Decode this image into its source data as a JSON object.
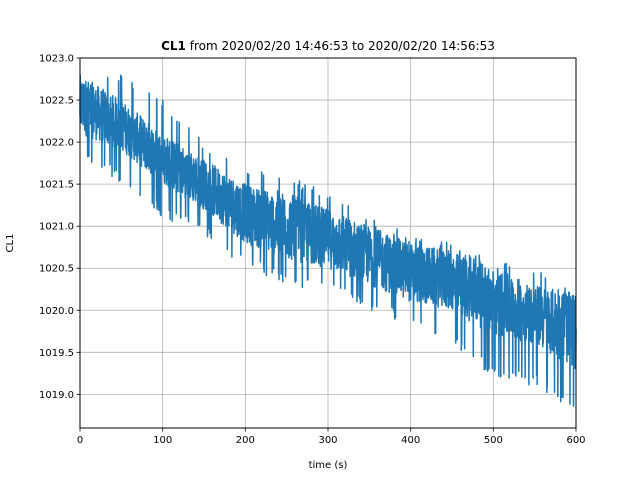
{
  "chart_data": {
    "type": "line",
    "title_bold": "CL1",
    "title_rest": " from 2020/02/20 14:46:53 to 2020/02/20 14:56:53",
    "xlabel": "time (s)",
    "ylabel": "CL1",
    "xlim": [
      0,
      600
    ],
    "ylim": [
      1018.6,
      1023.0
    ],
    "xticks": [
      0,
      100,
      200,
      300,
      400,
      500,
      600
    ],
    "xtick_labels": [
      "0",
      "100",
      "200",
      "300",
      "400",
      "500",
      "600"
    ],
    "yticks": [
      1019.0,
      1019.5,
      1020.0,
      1020.5,
      1021.0,
      1021.5,
      1022.0,
      1022.5,
      1023.0
    ],
    "ytick_labels": [
      "1019.0",
      "1019.5",
      "1020.0",
      "1020.5",
      "1021.0",
      "1021.5",
      "1022.0",
      "1022.5",
      "1023.0"
    ],
    "grid": true,
    "color": "#1f77b4",
    "series": [
      {
        "x": [
          0,
          50,
          100,
          150,
          200,
          250,
          300,
          350,
          400,
          450,
          500,
          550,
          600
        ],
        "band_low": [
          1022.1,
          1021.9,
          1021.5,
          1021.2,
          1020.8,
          1020.6,
          1020.5,
          1020.3,
          1020.1,
          1020.0,
          1019.7,
          1019.6,
          1019.3
        ],
        "band_high": [
          1022.8,
          1022.5,
          1022.1,
          1021.8,
          1021.5,
          1021.4,
          1021.2,
          1021.0,
          1020.8,
          1020.7,
          1020.5,
          1020.3,
          1020.2
        ],
        "spike_min": [
          1021.8,
          1021.5,
          1021.1,
          1020.9,
          1020.5,
          1020.3,
          1020.2,
          1020.0,
          1019.8,
          1019.6,
          1019.2,
          1019.1,
          1018.8
        ],
        "spike_max": [
          1022.8,
          1022.8,
          1022.5,
          1022.0,
          1021.7,
          1021.6,
          1021.4,
          1021.1,
          1020.9,
          1020.8,
          1020.6,
          1020.5,
          1020.2
        ]
      }
    ]
  }
}
